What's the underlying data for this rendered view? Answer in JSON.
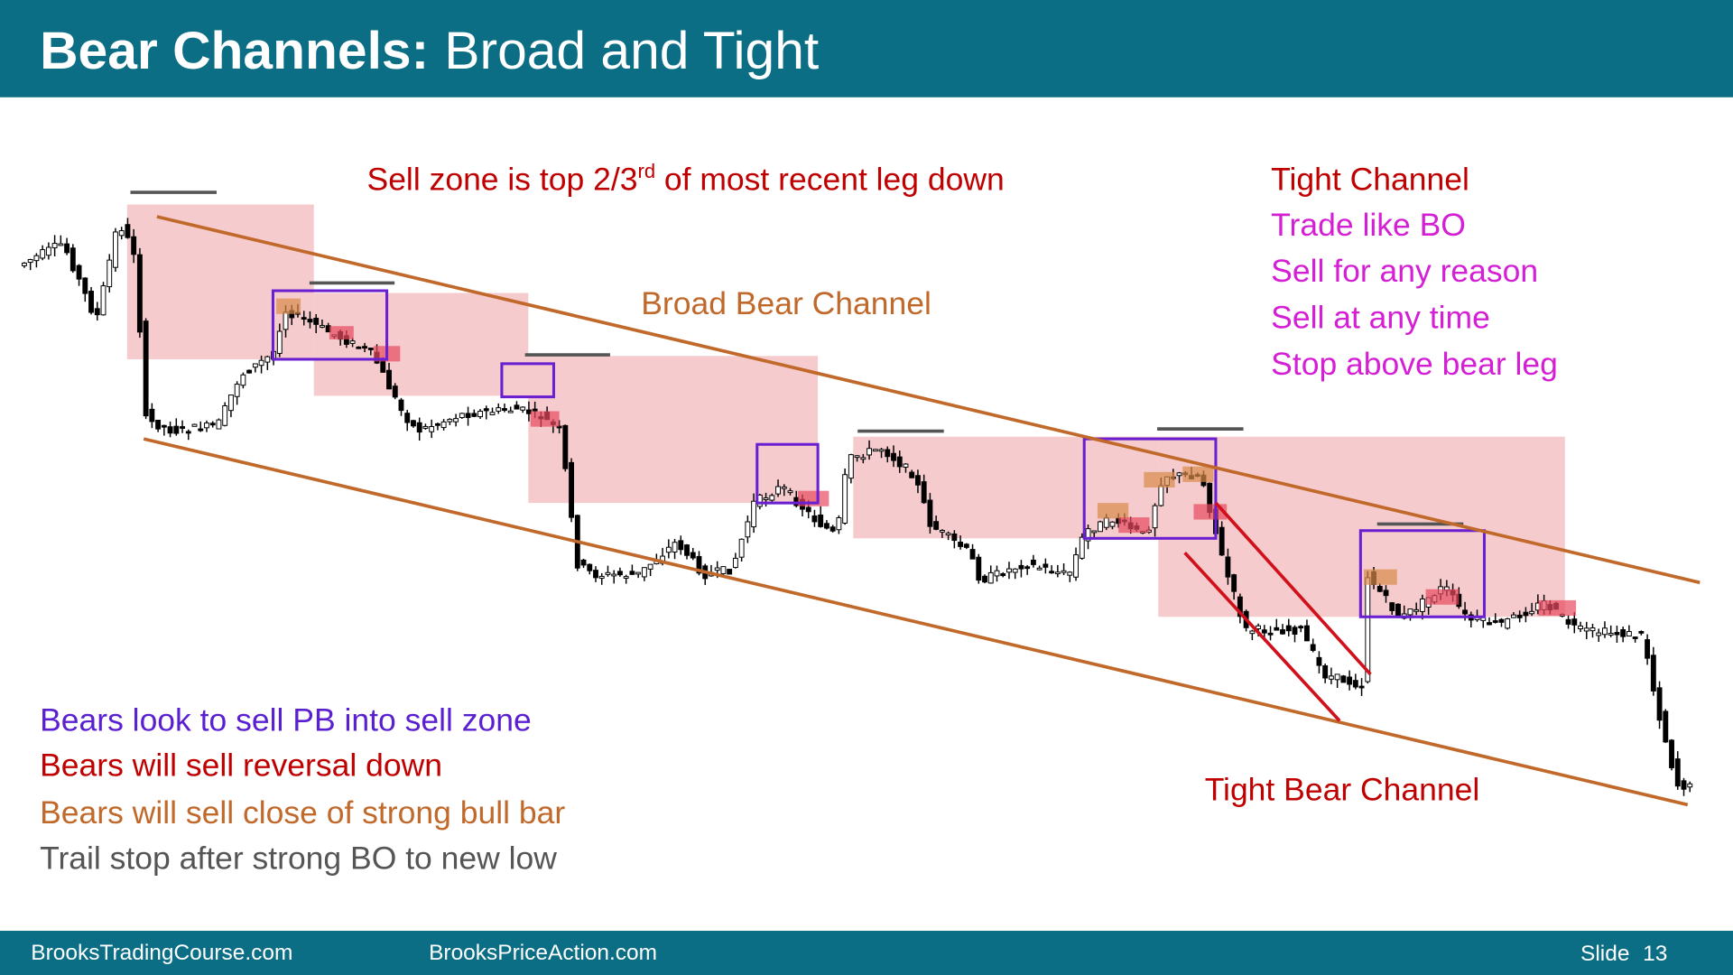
{
  "header": {
    "title_bold": "Bear Channels:",
    "title_rest": "Broad and Tight"
  },
  "sell_zone": {
    "text": "Sell zone is top 2/3",
    "superscript": "rd",
    "rest": "of most recent leg down"
  },
  "broad_label": "Broad Bear Channel",
  "tight_notes": [
    "Tight Channel",
    "Trade like BO",
    "Sell for any reason",
    "Sell at any time",
    "Stop above bear leg"
  ],
  "bear_notes": [
    "Bears look to sell PB into sell zone",
    "Bears will sell reversal down",
    "Bears will sell close of strong bull bar",
    "Trail stop after strong BO to new low"
  ],
  "tight_label": "Tight Bear Channel",
  "footer": {
    "left": "BrooksTradingCourse.com",
    "middle": "BrooksPriceAction.com",
    "slide_label": "Slide",
    "slide_number": "13"
  }
}
